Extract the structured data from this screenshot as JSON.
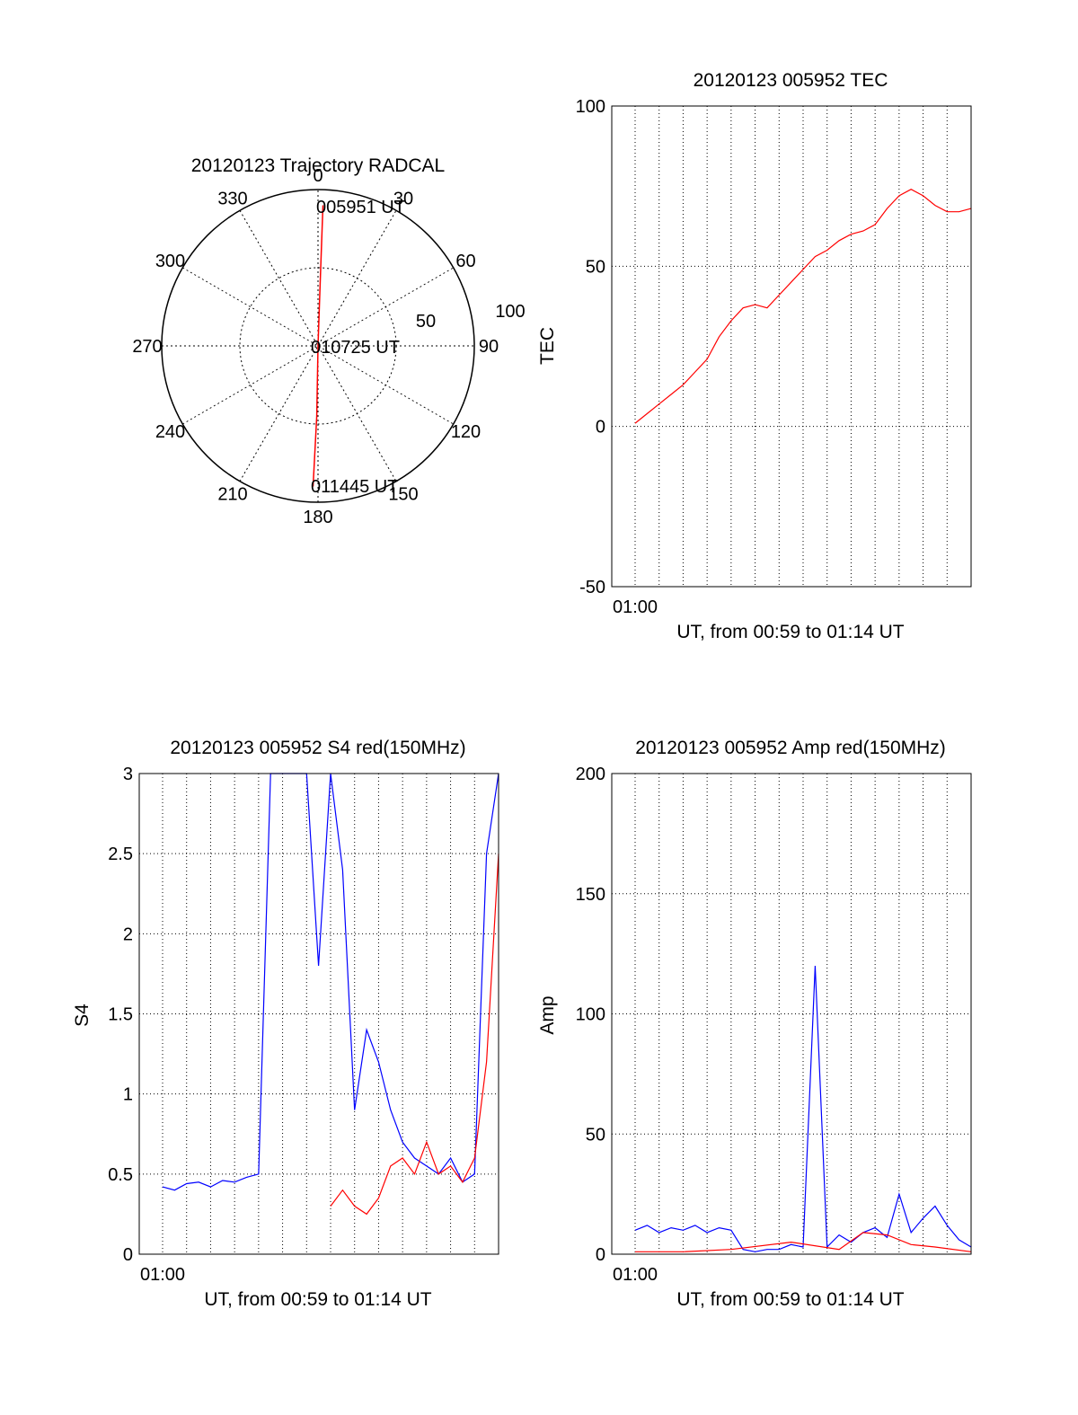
{
  "chart_data": [
    {
      "type": "polar",
      "title": "20120123 Trajectory RADCAL",
      "angle_labels": [
        "0",
        "30",
        "60",
        "90",
        "120",
        "150",
        "180",
        "210",
        "240",
        "270",
        "300",
        "330"
      ],
      "radius_labels": [
        "50",
        "100"
      ],
      "trajectory": [
        {
          "az": 2,
          "r": 90
        },
        {
          "az": 2,
          "r": 45
        },
        {
          "az": 0,
          "r": 0
        },
        {
          "az": 181,
          "r": 45
        },
        {
          "az": 182,
          "r": 90
        }
      ],
      "annotations": [
        "005951 UT",
        "010725 UT",
        "011445 UT"
      ],
      "colors": {
        "trajectory": "#ff0000"
      }
    },
    {
      "type": "line",
      "title": "20120123 005952 TEC",
      "xlabel": "UT, from 00:59 to 01:14 UT",
      "ylabel": "TEC",
      "xtick_label": "01:00",
      "ylim": [
        -50,
        100
      ],
      "yticks": [
        "-50",
        "0",
        "50",
        "100"
      ],
      "xlim_minutes": [
        0,
        14
      ],
      "grid": true,
      "series": [
        {
          "color": "#ff0000",
          "x": [
            0.0,
            0.5,
            1.0,
            1.5,
            2.0,
            2.5,
            3.0,
            3.5,
            4.0,
            4.5,
            5.0,
            5.5,
            6.0,
            6.5,
            7.0,
            7.5,
            8.0,
            8.5,
            9.0,
            9.5,
            10.0,
            10.5,
            11.0,
            11.5,
            12.0,
            12.5,
            13.0,
            13.5,
            14.0
          ],
          "y": [
            1,
            4,
            7,
            10,
            13,
            17,
            21,
            28,
            33,
            37,
            38,
            37,
            41,
            45,
            49,
            53,
            55,
            58,
            60,
            61,
            63,
            68,
            72,
            74,
            72,
            69,
            67,
            67,
            68
          ]
        }
      ]
    },
    {
      "type": "line",
      "title": "20120123 005952 S4 red(150MHz)",
      "xlabel": "UT, from 00:59 to 01:14 UT",
      "ylabel": "S4",
      "xtick_label": "01:00",
      "ylim": [
        0,
        3
      ],
      "yticks": [
        "0",
        "0.5",
        "1",
        "1.5",
        "2",
        "2.5",
        "3"
      ],
      "xlim_minutes": [
        0,
        14
      ],
      "grid": true,
      "series": [
        {
          "color": "#0000ff",
          "x": [
            0.0,
            0.5,
            1.0,
            1.5,
            2.0,
            2.5,
            3.0,
            3.5,
            4.0,
            4.5,
            5.0,
            5.5,
            6.0,
            6.5,
            7.0,
            7.5,
            8.0,
            8.5,
            9.0,
            9.5,
            10.0,
            10.5,
            11.0,
            11.5,
            12.0,
            12.5,
            13.0,
            13.5,
            14.0
          ],
          "y": [
            0.42,
            0.4,
            0.44,
            0.45,
            0.42,
            0.46,
            0.45,
            0.48,
            0.5,
            3.0,
            3.0,
            3.0,
            3.0,
            1.8,
            3.0,
            2.4,
            0.9,
            1.4,
            1.2,
            0.9,
            0.7,
            0.6,
            0.55,
            0.5,
            0.6,
            0.45,
            0.5,
            2.5,
            3.0
          ]
        },
        {
          "color": "#ff0000",
          "x": [
            7.0,
            7.5,
            8.0,
            8.5,
            9.0,
            9.5,
            10.0,
            10.5,
            11.0,
            11.5,
            12.0,
            12.5,
            13.0,
            13.5,
            14.0
          ],
          "y": [
            0.3,
            0.4,
            0.3,
            0.25,
            0.35,
            0.55,
            0.6,
            0.5,
            0.7,
            0.5,
            0.55,
            0.45,
            0.6,
            1.2,
            2.5
          ]
        }
      ]
    },
    {
      "type": "line",
      "title": "20120123 005952 Amp red(150MHz)",
      "xlabel": "UT, from 00:59 to 01:14 UT",
      "ylabel": "Amp",
      "xtick_label": "01:00",
      "ylim": [
        0,
        200
      ],
      "yticks": [
        "0",
        "50",
        "100",
        "150",
        "200"
      ],
      "xlim_minutes": [
        0,
        14
      ],
      "grid": true,
      "series": [
        {
          "color": "#0000ff",
          "x": [
            0.0,
            0.5,
            1.0,
            1.5,
            2.0,
            2.5,
            3.0,
            3.5,
            4.0,
            4.5,
            5.0,
            5.5,
            6.0,
            6.5,
            7.0,
            7.5,
            8.0,
            8.5,
            9.0,
            9.5,
            10.0,
            10.5,
            11.0,
            11.5,
            12.0,
            12.5,
            13.0,
            13.5,
            14.0
          ],
          "y": [
            10,
            12,
            9,
            11,
            10,
            12,
            9,
            11,
            10,
            2,
            1,
            2,
            2,
            4,
            3,
            120,
            3,
            8,
            5,
            9,
            11,
            7,
            25,
            9,
            15,
            20,
            12,
            6,
            3
          ]
        },
        {
          "color": "#ff0000",
          "x": [
            0.0,
            2.0,
            4.0,
            6.5,
            8.5,
            9.5,
            10.5,
            11.5,
            12.5,
            14.0
          ],
          "y": [
            1,
            1,
            2,
            5,
            2,
            9,
            8,
            4,
            3,
            1
          ]
        }
      ]
    }
  ]
}
